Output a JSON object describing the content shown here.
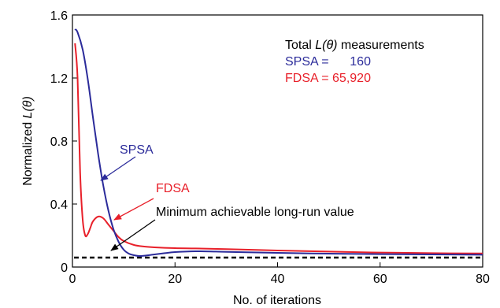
{
  "chart_data": {
    "type": "line",
    "title": "",
    "xlabel": "No. of iterations",
    "ylabel_prefix": "Normalized ",
    "ylabel_symbol": "L(θ)",
    "xlim": [
      0,
      80
    ],
    "ylim": [
      0,
      1.6
    ],
    "x_ticks": [
      0,
      20,
      40,
      60,
      80
    ],
    "y_ticks": [
      0,
      0.4,
      0.8,
      1.2,
      1.6
    ],
    "y_tick_labels": [
      "0",
      "0.4",
      "0.8",
      "1.2",
      "1.6"
    ],
    "grid": false,
    "series": [
      {
        "name": "SPSA",
        "color": "#2b2b9a",
        "x": [
          0.5,
          1,
          2,
          3,
          4,
          5,
          6,
          7,
          8,
          9,
          10,
          11,
          12,
          13,
          14,
          16,
          18,
          20,
          24,
          28,
          32,
          40,
          50,
          60,
          70,
          80
        ],
        "y": [
          1.51,
          1.49,
          1.38,
          1.19,
          0.95,
          0.72,
          0.52,
          0.36,
          0.24,
          0.16,
          0.11,
          0.085,
          0.075,
          0.07,
          0.072,
          0.08,
          0.088,
          0.095,
          0.1,
          0.098,
          0.095,
          0.09,
          0.085,
          0.082,
          0.08,
          0.078
        ]
      },
      {
        "name": "FDSA",
        "color": "#e8202a",
        "x": [
          0.5,
          1,
          1.5,
          2,
          2.5,
          3,
          3.5,
          4,
          5,
          6,
          7,
          8,
          9,
          10,
          12,
          14,
          16,
          20,
          24,
          30,
          40,
          50,
          60,
          70,
          80
        ],
        "y": [
          1.42,
          1.2,
          0.6,
          0.3,
          0.2,
          0.21,
          0.25,
          0.29,
          0.32,
          0.31,
          0.27,
          0.23,
          0.19,
          0.165,
          0.14,
          0.13,
          0.125,
          0.12,
          0.118,
          0.114,
          0.105,
          0.098,
          0.092,
          0.088,
          0.086
        ]
      }
    ],
    "reference_line": {
      "label": "Minimum achievable long-run value",
      "y": 0.06,
      "color": "#000000",
      "style": "dashed"
    },
    "annotations": {
      "header_prefix": "Total ",
      "header_symbol": "L(θ)",
      "header_suffix": " measurements",
      "spsa_line": "SPSA =      160",
      "fdsa_line": "FDSA = 65,920",
      "spsa_label": "SPSA",
      "fdsa_label": "FDSA"
    }
  }
}
